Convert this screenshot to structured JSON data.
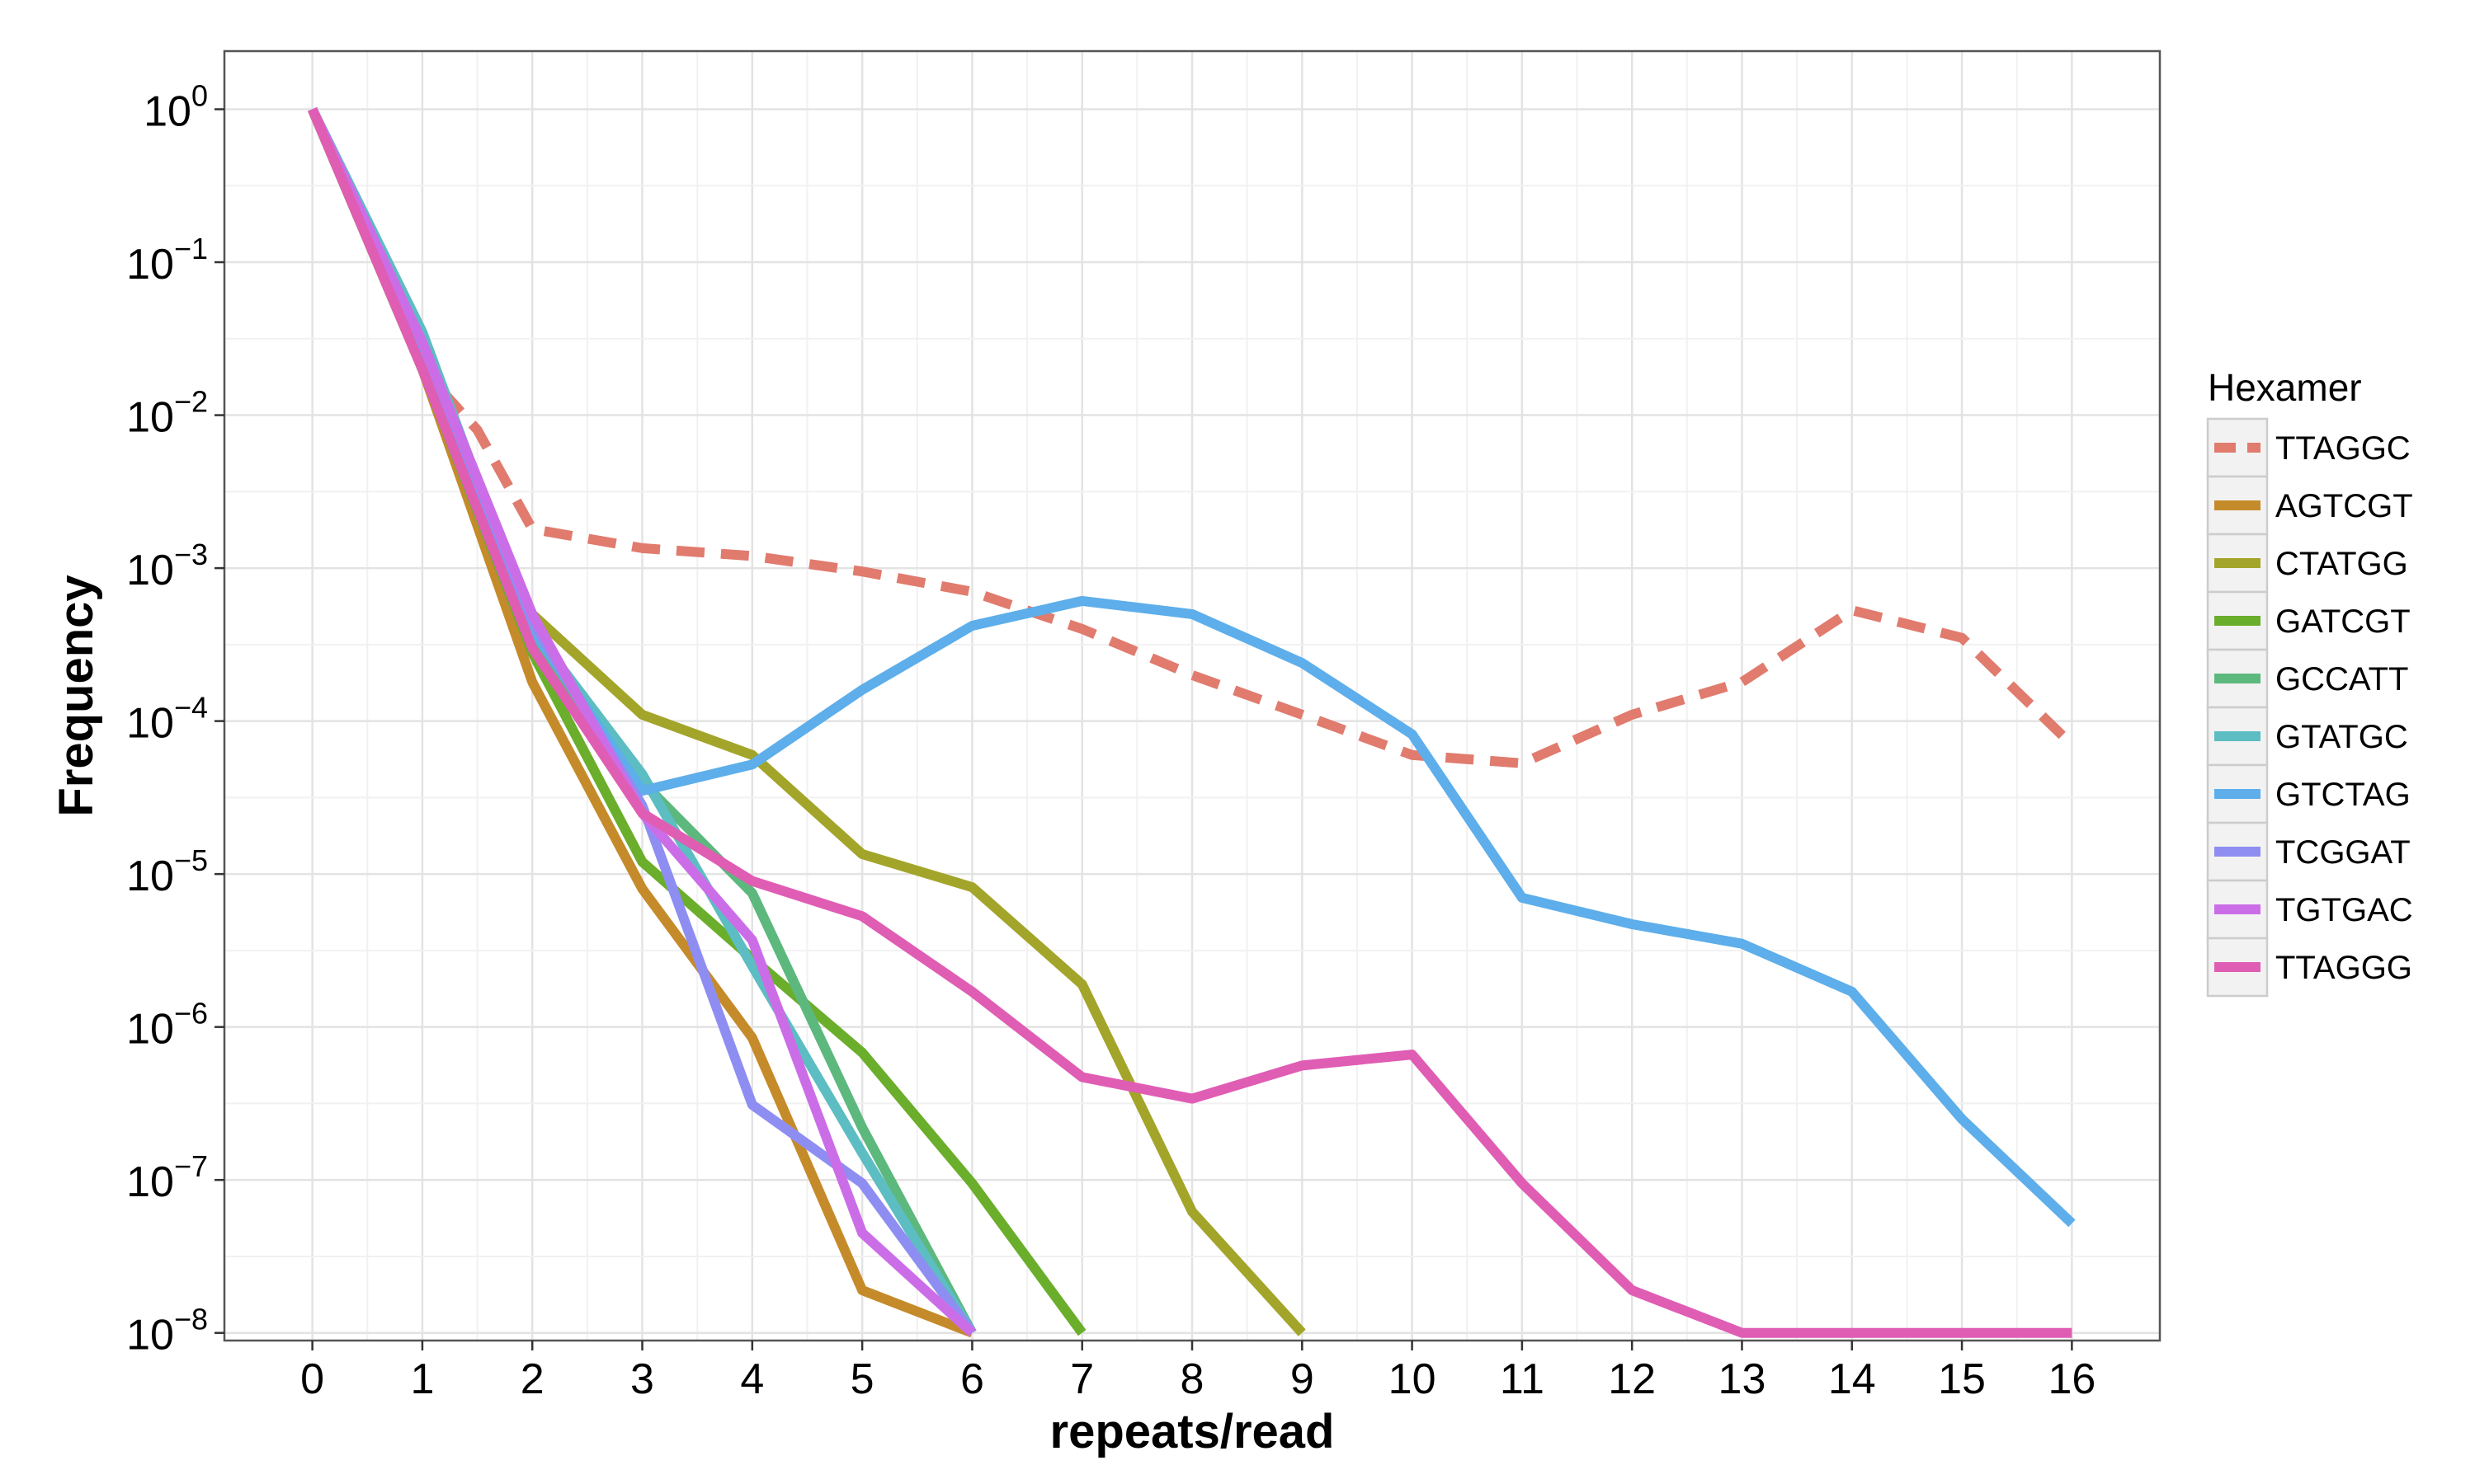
{
  "chart_data": {
    "type": "line",
    "xlabel": "repeats/read",
    "ylabel": "Frequency",
    "x": [
      0,
      1,
      2,
      3,
      4,
      5,
      6,
      7,
      8,
      9,
      10,
      11,
      12,
      13,
      14,
      15,
      16
    ],
    "xlim": [
      -0.8,
      16.8
    ],
    "ylim_log10": [
      -8.05,
      0.38
    ],
    "y_scale": "log10",
    "y_ticks": [
      {
        "exp": "0"
      },
      {
        "exp": "−1"
      },
      {
        "exp": "−2"
      },
      {
        "exp": "−3"
      },
      {
        "exp": "−4"
      },
      {
        "exp": "−5"
      },
      {
        "exp": "−6"
      },
      {
        "exp": "−7"
      },
      {
        "exp": "−8"
      }
    ],
    "y_tick_base": "10",
    "grid": true,
    "legend": {
      "title": "Hexamer",
      "position": "right"
    },
    "series": [
      {
        "name": "TTAGGC",
        "color": "#E07B6E",
        "dashed": true,
        "x": [
          0,
          1,
          1.5,
          2,
          3,
          4,
          5,
          6,
          7,
          8,
          9,
          10,
          11,
          12,
          13,
          14,
          15,
          16
        ],
        "y": [
          1,
          0.02,
          0.008,
          0.0018,
          0.00135,
          0.0012,
          0.00095,
          0.0007,
          0.0004,
          0.0002,
          0.00011,
          6e-05,
          5.3e-05,
          0.00011,
          0.00018,
          0.00053,
          0.00035,
          7e-05
        ]
      },
      {
        "name": "AGTCGT",
        "color": "#C58B2A",
        "dashed": false,
        "x": [
          0,
          1,
          2,
          3,
          4,
          5,
          6
        ],
        "y": [
          1,
          0.02,
          0.00018,
          8e-06,
          8.5e-07,
          1.9e-08,
          1e-08
        ]
      },
      {
        "name": "CTATGG",
        "color": "#A3A52A",
        "dashed": false,
        "x": [
          0,
          1,
          2,
          3,
          4,
          5,
          6,
          7,
          8,
          9
        ],
        "y": [
          1,
          0.02,
          0.0005,
          0.00011,
          6e-05,
          1.35e-05,
          8.2e-06,
          1.9e-06,
          6.2e-08,
          1e-08
        ]
      },
      {
        "name": "GATCGT",
        "color": "#6AAE2B",
        "dashed": false,
        "x": [
          0,
          1,
          2,
          3,
          4,
          5,
          6,
          7
        ],
        "y": [
          1,
          0.02,
          0.00028,
          1.2e-05,
          2.8e-06,
          6.8e-07,
          9.5e-08,
          1e-08
        ]
      },
      {
        "name": "GCCATT",
        "color": "#5DB87E",
        "dashed": false,
        "x": [
          0,
          1,
          2,
          3,
          4,
          5,
          6
        ],
        "y": [
          1,
          0.025,
          0.00032,
          4e-05,
          7.5e-06,
          2.2e-07,
          1e-08
        ]
      },
      {
        "name": "GTATGC",
        "color": "#5CBDC2",
        "dashed": false,
        "x": [
          0,
          1,
          2,
          3,
          4,
          5,
          6
        ],
        "y": [
          1,
          0.035,
          0.0004,
          4.5e-05,
          2.5e-06,
          1.5e-07,
          1e-08
        ]
      },
      {
        "name": "GTCTAG",
        "color": "#5DAEEA",
        "dashed": false,
        "x": [
          0,
          1,
          2,
          3,
          4,
          5,
          6,
          7,
          8,
          9,
          10,
          11,
          12,
          13,
          14,
          15,
          16
        ],
        "y": [
          1,
          0.025,
          0.0004,
          3.5e-05,
          5.2e-05,
          0.00016,
          0.00042,
          0.00061,
          0.0005,
          0.00024,
          8.2e-05,
          7e-06,
          4.7e-06,
          3.5e-06,
          1.7e-06,
          2.5e-07,
          5.2e-08
        ]
      },
      {
        "name": "TCGGAT",
        "color": "#8E8EF2",
        "dashed": false,
        "x": [
          0,
          1,
          2,
          3,
          4,
          5,
          6
        ],
        "y": [
          1,
          0.03,
          0.00045,
          2.8e-05,
          3.1e-07,
          9.5e-08,
          1e-08
        ]
      },
      {
        "name": "TGTGAC",
        "color": "#CC6DE8",
        "dashed": false,
        "x": [
          0,
          1,
          2,
          3,
          4,
          5,
          6
        ],
        "y": [
          1,
          0.03,
          0.0005,
          2.5e-05,
          3.7e-06,
          4.5e-08,
          1e-08
        ]
      },
      {
        "name": "TTAGGG",
        "color": "#E05DB4",
        "dashed": false,
        "x": [
          0,
          1,
          2,
          3,
          4,
          5,
          6,
          7,
          8,
          9,
          10,
          11,
          12,
          13,
          14,
          15,
          16
        ],
        "y": [
          1,
          0.02,
          0.0003,
          2.5e-05,
          9e-06,
          5.3e-06,
          1.7e-06,
          4.7e-07,
          3.4e-07,
          5.6e-07,
          6.6e-07,
          9.5e-08,
          1.9e-08,
          1e-08,
          1e-08,
          1e-08,
          1e-08
        ]
      }
    ]
  }
}
